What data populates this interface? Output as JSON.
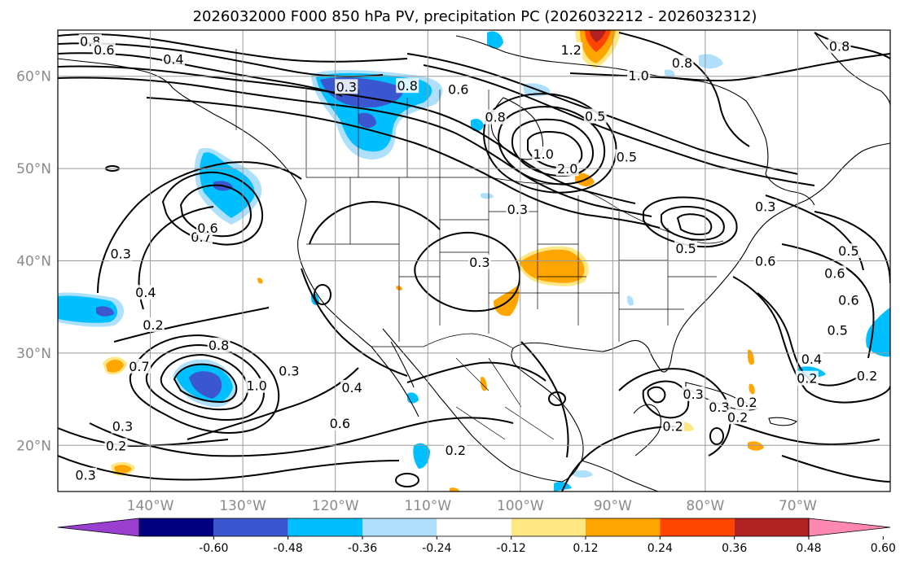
{
  "title": "2026032000 F000 850 hPa PV, precipitation PC (2026032212 - 2026032312)",
  "map": {
    "projection": "lat-lon",
    "lon_range": [
      -150,
      -60
    ],
    "lat_range": [
      15,
      65
    ],
    "grid": true,
    "lat_ticks": [
      {
        "value": 60,
        "label": "60°N"
      },
      {
        "value": 50,
        "label": "50°N"
      },
      {
        "value": 40,
        "label": "40°N"
      },
      {
        "value": 30,
        "label": "30°N"
      },
      {
        "value": 20,
        "label": "20°N"
      }
    ],
    "lon_ticks": [
      {
        "value": -140,
        "label": "140°W"
      },
      {
        "value": -130,
        "label": "130°W"
      },
      {
        "value": -120,
        "label": "120°W"
      },
      {
        "value": -110,
        "label": "110°W"
      },
      {
        "value": -100,
        "label": "100°W"
      },
      {
        "value": -90,
        "label": "90°W"
      },
      {
        "value": -80,
        "label": "80°W"
      },
      {
        "value": -70,
        "label": "70°W"
      }
    ],
    "contour_labels": [
      {
        "text": "0.8",
        "lon": -146.5,
        "lat": 63.7
      },
      {
        "text": "0.6",
        "lon": -145,
        "lat": 62.8
      },
      {
        "text": "0.4",
        "lon": -137.5,
        "lat": 61.8
      },
      {
        "text": "0.3",
        "lon": -118.8,
        "lat": 58.8
      },
      {
        "text": "0.8",
        "lon": -112.2,
        "lat": 58.9
      },
      {
        "text": "0.6",
        "lon": -106.7,
        "lat": 58.5
      },
      {
        "text": "1.2",
        "lon": -94.5,
        "lat": 62.8
      },
      {
        "text": "1.0",
        "lon": -87.2,
        "lat": 60.0
      },
      {
        "text": "0.8",
        "lon": -82.5,
        "lat": 61.4
      },
      {
        "text": "0.8",
        "lon": -65.5,
        "lat": 63.2
      },
      {
        "text": "0.8",
        "lon": -102.7,
        "lat": 55.5
      },
      {
        "text": "0.5",
        "lon": -91.9,
        "lat": 55.6
      },
      {
        "text": "1.0",
        "lon": -97.5,
        "lat": 51.5
      },
      {
        "text": "2.0",
        "lon": -94.9,
        "lat": 49.9
      },
      {
        "text": "0.5",
        "lon": -88.5,
        "lat": 51.2
      },
      {
        "text": "0.3",
        "lon": -100.3,
        "lat": 45.5
      },
      {
        "text": "0.5",
        "lon": -82.1,
        "lat": 41.3
      },
      {
        "text": "0.3",
        "lon": -73.5,
        "lat": 45.8
      },
      {
        "text": "0.5",
        "lon": -64.5,
        "lat": 41.0
      },
      {
        "text": "0.6",
        "lon": -66.0,
        "lat": 38.6
      },
      {
        "text": "0.6",
        "lon": -73.5,
        "lat": 39.9
      },
      {
        "text": "0.6",
        "lon": -64.5,
        "lat": 35.7
      },
      {
        "text": "0.5",
        "lon": -65.7,
        "lat": 32.4
      },
      {
        "text": "0.4",
        "lon": -68.5,
        "lat": 29.3
      },
      {
        "text": "0.2",
        "lon": -69.0,
        "lat": 27.2
      },
      {
        "text": "0.2",
        "lon": -62.5,
        "lat": 27.5
      },
      {
        "text": "0.7",
        "lon": -134.5,
        "lat": 42.5
      },
      {
        "text": "0.6",
        "lon": -133.8,
        "lat": 43.5
      },
      {
        "text": "0.3",
        "lon": -143.2,
        "lat": 40.7
      },
      {
        "text": "0.4",
        "lon": -140.5,
        "lat": 36.5
      },
      {
        "text": "0.2",
        "lon": -139.7,
        "lat": 33.0
      },
      {
        "text": "0.3",
        "lon": -104.4,
        "lat": 39.8
      },
      {
        "text": "0.8",
        "lon": -132.6,
        "lat": 30.8
      },
      {
        "text": "0.7",
        "lon": -141.2,
        "lat": 28.5
      },
      {
        "text": "1.0",
        "lon": -128.5,
        "lat": 26.4
      },
      {
        "text": "0.3",
        "lon": -125.0,
        "lat": 28.0
      },
      {
        "text": "0.4",
        "lon": -118.2,
        "lat": 26.2
      },
      {
        "text": "0.6",
        "lon": -119.5,
        "lat": 22.3
      },
      {
        "text": "0.3",
        "lon": -143.0,
        "lat": 22.0
      },
      {
        "text": "0.2",
        "lon": -143.7,
        "lat": 19.9
      },
      {
        "text": "0.3",
        "lon": -147.0,
        "lat": 16.7
      },
      {
        "text": "0.2",
        "lon": -107.0,
        "lat": 19.4
      },
      {
        "text": "0.3",
        "lon": -81.3,
        "lat": 25.5
      },
      {
        "text": "0.3",
        "lon": -78.5,
        "lat": 24.1
      },
      {
        "text": "0.2",
        "lon": -76.5,
        "lat": 23.0
      },
      {
        "text": "0.2",
        "lon": -75.5,
        "lat": 24.6
      },
      {
        "text": "0.2",
        "lon": -83.5,
        "lat": 22.0
      }
    ]
  },
  "colorbar": {
    "ticks": [
      "-0.60",
      "-0.48",
      "-0.36",
      "-0.24",
      "-0.12",
      "0.12",
      "0.24",
      "0.36",
      "0.48",
      "0.60"
    ],
    "colors": [
      "#9a3fd0",
      "#000080",
      "#3a57d0",
      "#00bfff",
      "#aee0fb",
      "#ffffff",
      "#ffe884",
      "#ffa500",
      "#ff4500",
      "#b22222",
      "#ff88b0"
    ]
  }
}
